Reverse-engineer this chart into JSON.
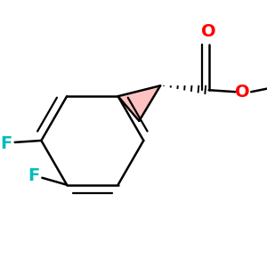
{
  "background_color": "#ffffff",
  "bond_color": "#000000",
  "bond_width": 1.8,
  "F_color": "#00bbbb",
  "O_color": "#ff0000",
  "cyclopropane_fill": "#ff9090",
  "figsize": [
    3.0,
    3.0
  ],
  "dpi": 100,
  "font_size": 14,
  "F1_label": "F",
  "F2_label": "F",
  "O_double_label": "O",
  "O_ester_label": "O"
}
